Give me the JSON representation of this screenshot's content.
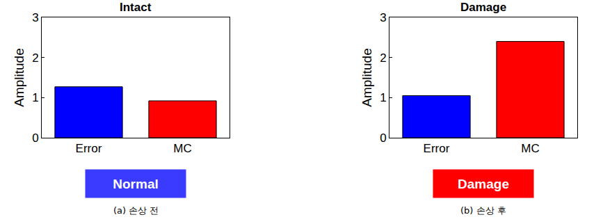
{
  "chart_data": [
    {
      "type": "bar",
      "title": "Intact",
      "y_label": "Amplitude",
      "categories": [
        "Error",
        "MC"
      ],
      "values": [
        1.27,
        0.92
      ],
      "colors": [
        "#0000ff",
        "#ff0000"
      ],
      "ylim": [
        0,
        3
      ],
      "yticks": [
        0,
        1,
        2,
        3
      ],
      "grid": false,
      "annotations": [
        {
          "text": "Normal",
          "color": "#3b3bff"
        },
        {
          "text": "(a) 손상 전"
        }
      ]
    },
    {
      "type": "bar",
      "title": "Damage",
      "y_label": "Amplitude",
      "categories": [
        "Error",
        "MC"
      ],
      "values": [
        1.05,
        2.4
      ],
      "colors": [
        "#0000ff",
        "#ff0000"
      ],
      "ylim": [
        0,
        3
      ],
      "yticks": [
        0,
        1,
        2,
        3
      ],
      "grid": false,
      "annotations": [
        {
          "text": "Damage",
          "color": "#ff0000"
        },
        {
          "text": "(b) 손상 후"
        }
      ]
    }
  ]
}
